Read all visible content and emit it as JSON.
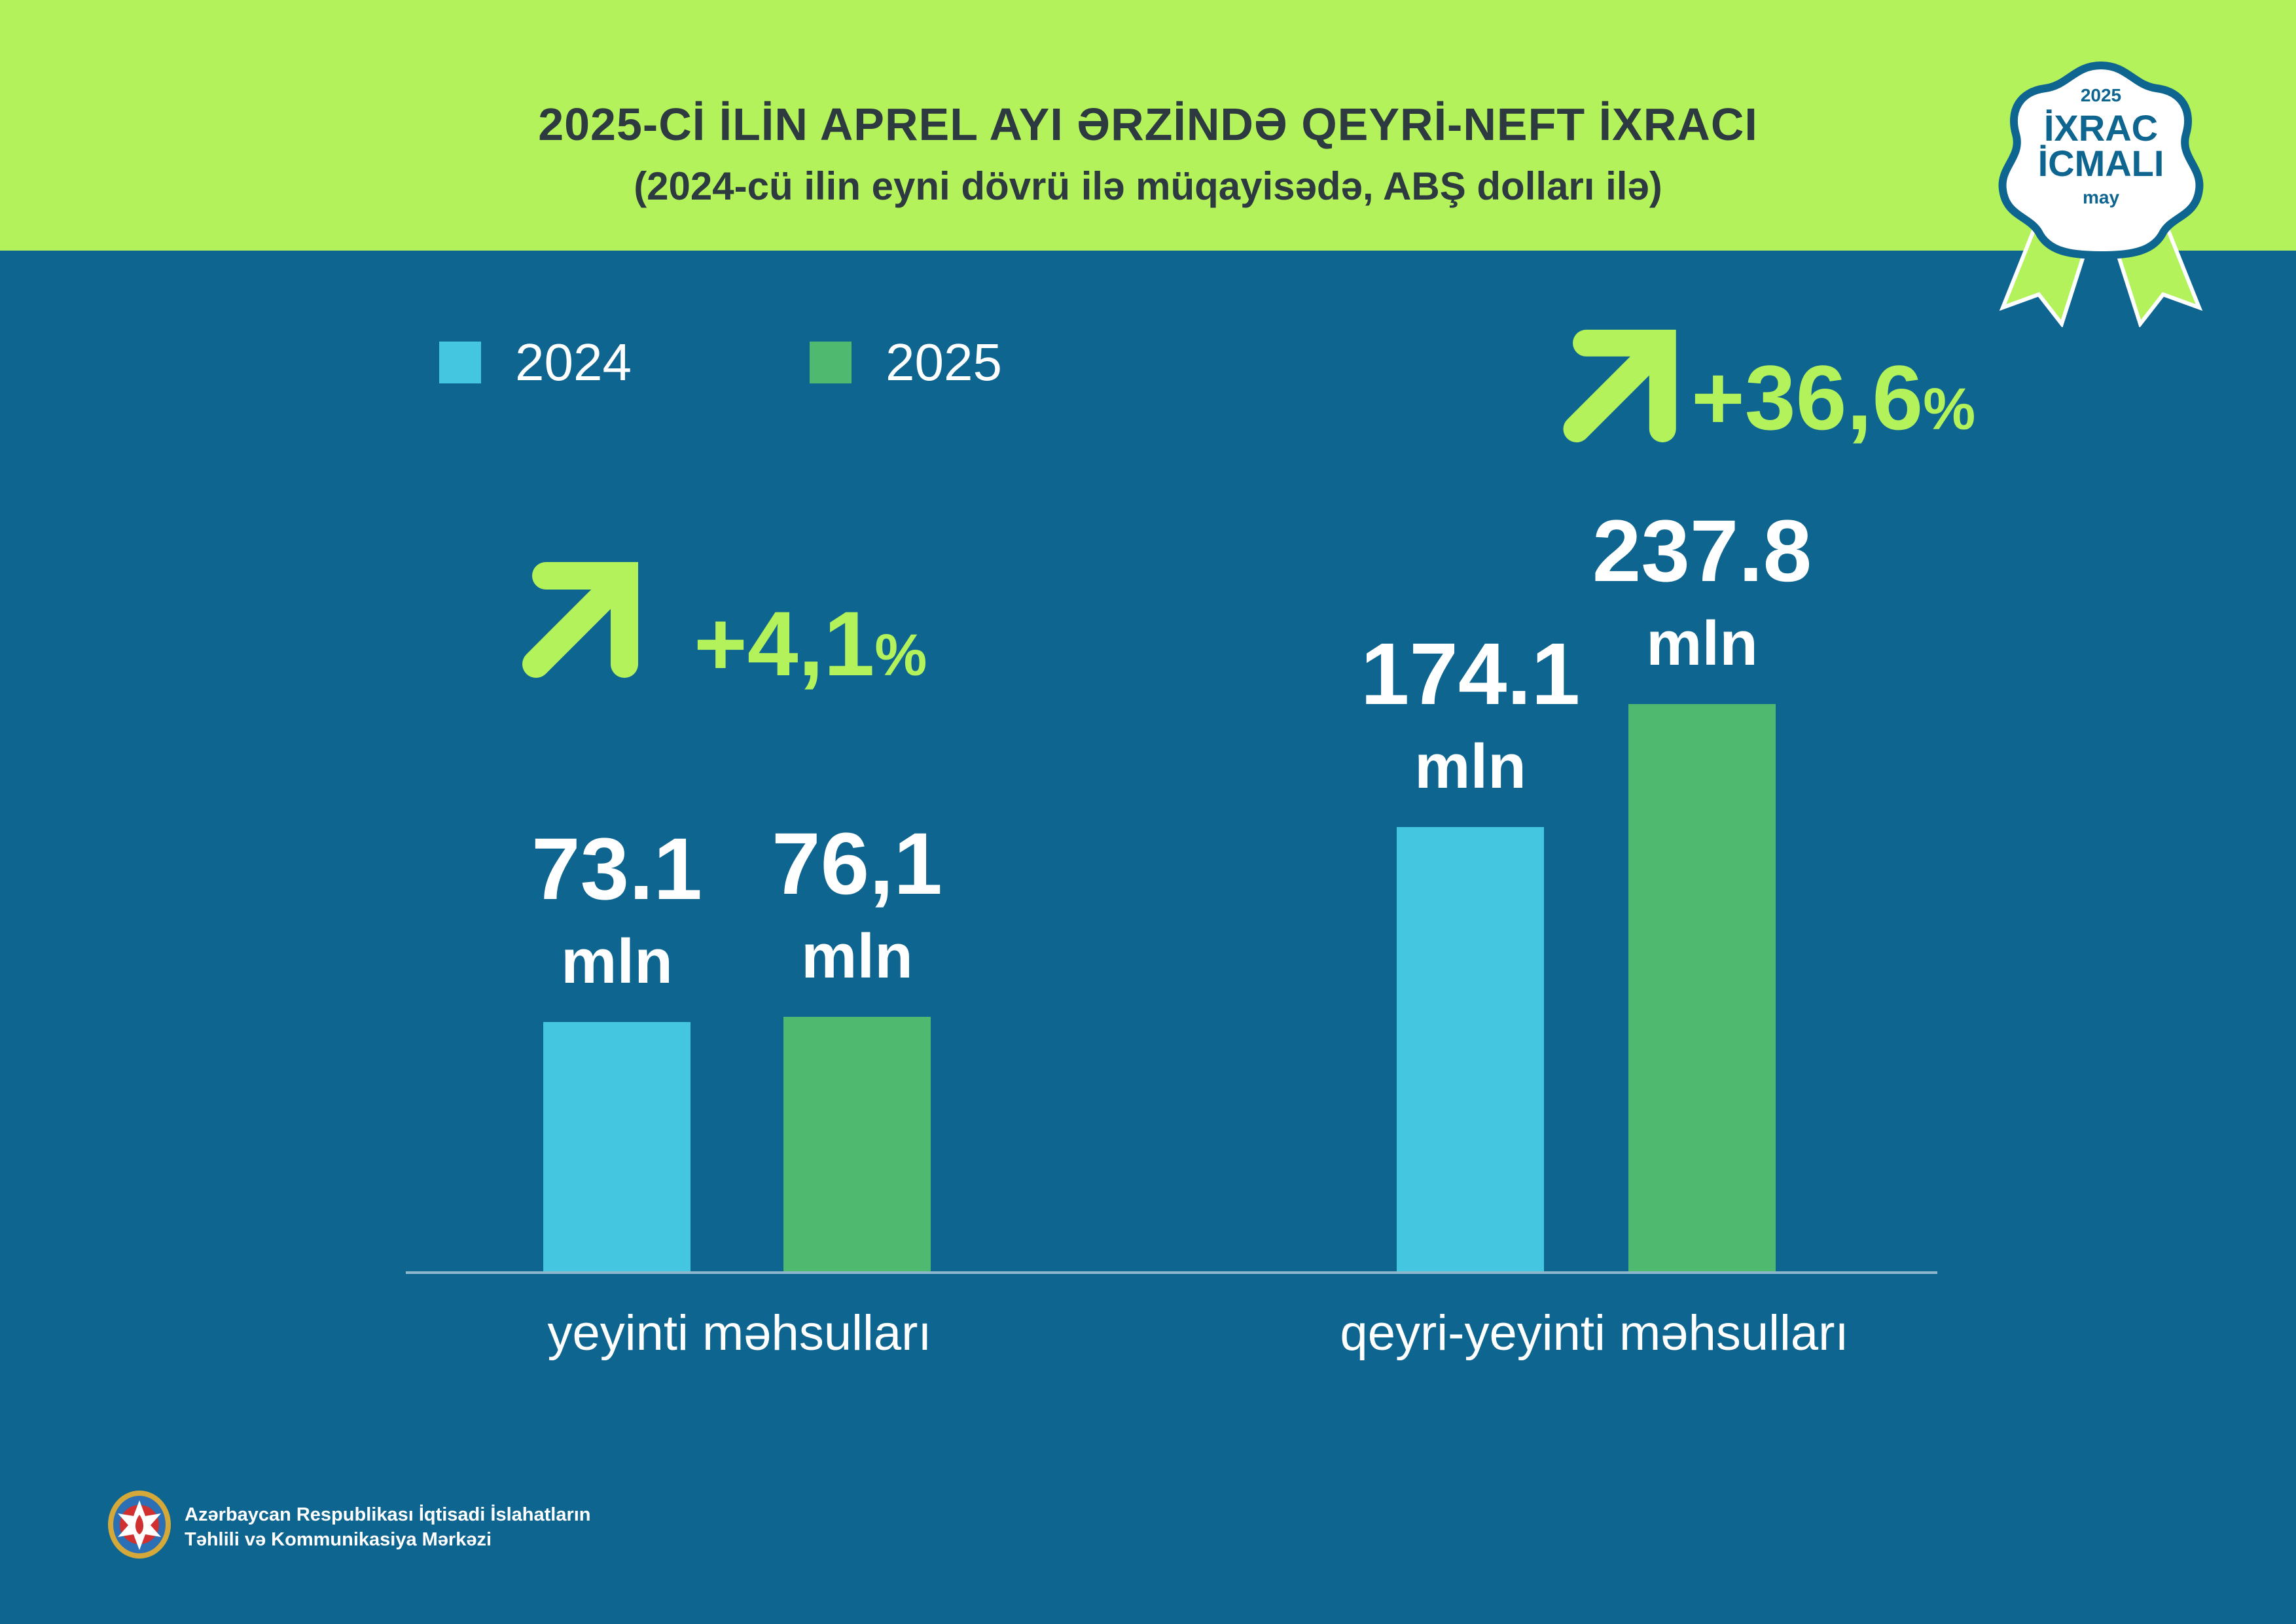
{
  "header": {
    "title": "2025-Cİ İLİN APREL AYI ƏRZİNDƏ QEYRİ-NEFT İXRACI",
    "subtitle": "(2024-cü ilin eyni dövrü ilə müqayisədə, ABŞ dolları ilə)"
  },
  "badge": {
    "year": "2025",
    "line1": "İXRAC",
    "line2": "İCMALI",
    "month": "may"
  },
  "colors": {
    "header_bg": "#b3f25a",
    "page_bg": "#0e6590",
    "series_2024": "#45c6e0",
    "series_2025": "#4fba6f",
    "accent": "#b3f25a"
  },
  "chart_data": {
    "type": "bar",
    "categories": [
      "yeyinti məhsulları",
      "qeyri-yeyinti məhsulları"
    ],
    "series": [
      {
        "name": "2024",
        "values": [
          73.1,
          174.1
        ],
        "labels": [
          "73.1",
          "174.1"
        ],
        "color": "#45c6e0"
      },
      {
        "name": "2025",
        "values": [
          76.1,
          237.8
        ],
        "labels": [
          "76,1",
          "237.8"
        ],
        "color": "#4fba6f"
      }
    ],
    "unit": "mln",
    "changes": [
      "+4,1",
      "+36,6"
    ],
    "percent_sign": "%",
    "legend_position": "top-left",
    "grid": false
  },
  "footer": {
    "org_line1": "Azərbaycan Respublikası İqtisadi İslahatların",
    "org_line2": "Təhlili və Kommunikasiya Mərkəzi",
    "emblem": "azerbaijan-state-emblem"
  }
}
